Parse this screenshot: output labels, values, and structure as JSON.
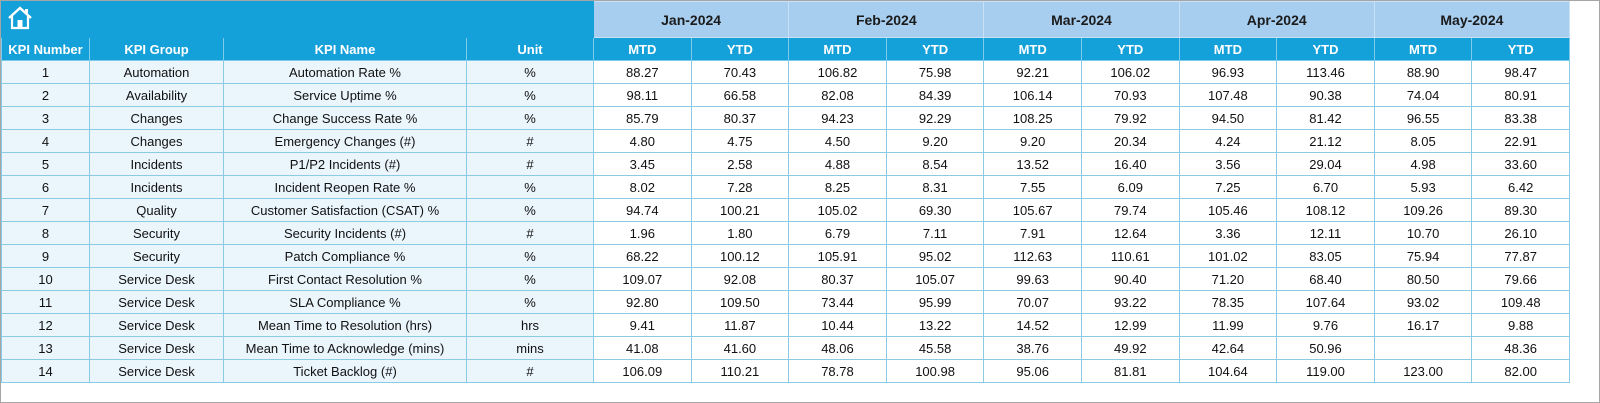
{
  "table": {
    "columns": [
      "KPI Number",
      "KPI Group",
      "KPI Name",
      "Unit"
    ],
    "months": [
      {
        "label": "Jan-2024",
        "sub": [
          "MTD",
          "YTD"
        ]
      },
      {
        "label": "Feb-2024",
        "sub": [
          "MTD",
          "YTD"
        ]
      },
      {
        "label": "Mar-2024",
        "sub": [
          "MTD",
          "YTD"
        ]
      },
      {
        "label": "Apr-2024",
        "sub": [
          "MTD",
          "YTD"
        ]
      },
      {
        "label": "May-2024",
        "sub": [
          "MTD",
          "YTD"
        ]
      }
    ],
    "rows": [
      [
        1,
        "Automation",
        "Automation Rate %",
        "%",
        "88.27",
        "70.43",
        "106.82",
        "75.98",
        "92.21",
        "106.02",
        "96.93",
        "113.46",
        "88.90",
        "98.47"
      ],
      [
        2,
        "Availability",
        "Service Uptime %",
        "%",
        "98.11",
        "66.58",
        "82.08",
        "84.39",
        "106.14",
        "70.93",
        "107.48",
        "90.38",
        "74.04",
        "80.91"
      ],
      [
        3,
        "Changes",
        "Change Success Rate %",
        "%",
        "85.79",
        "80.37",
        "94.23",
        "92.29",
        "108.25",
        "79.92",
        "94.50",
        "81.42",
        "96.55",
        "83.38"
      ],
      [
        4,
        "Changes",
        "Emergency Changes (#)",
        "#",
        "4.80",
        "4.75",
        "4.50",
        "9.20",
        "9.20",
        "20.34",
        "4.24",
        "21.12",
        "8.05",
        "22.91"
      ],
      [
        5,
        "Incidents",
        "P1/P2 Incidents (#)",
        "#",
        "3.45",
        "2.58",
        "4.88",
        "8.54",
        "13.52",
        "16.40",
        "3.56",
        "29.04",
        "4.98",
        "33.60"
      ],
      [
        6,
        "Incidents",
        "Incident Reopen Rate %",
        "%",
        "8.02",
        "7.28",
        "8.25",
        "8.31",
        "7.55",
        "6.09",
        "7.25",
        "6.70",
        "5.93",
        "6.42"
      ],
      [
        7,
        "Quality",
        "Customer Satisfaction (CSAT) %",
        "%",
        "94.74",
        "100.21",
        "105.02",
        "69.30",
        "105.67",
        "79.74",
        "105.46",
        "108.12",
        "109.26",
        "89.30"
      ],
      [
        8,
        "Security",
        "Security Incidents (#)",
        "#",
        "1.96",
        "1.80",
        "6.79",
        "7.11",
        "7.91",
        "12.64",
        "3.36",
        "12.11",
        "10.70",
        "26.10"
      ],
      [
        9,
        "Security",
        "Patch Compliance %",
        "%",
        "68.22",
        "100.12",
        "105.91",
        "95.02",
        "112.63",
        "110.61",
        "101.02",
        "83.05",
        "75.94",
        "77.87"
      ],
      [
        10,
        "Service Desk",
        "First Contact Resolution %",
        "%",
        "109.07",
        "92.08",
        "80.37",
        "105.07",
        "99.63",
        "90.40",
        "71.20",
        "68.40",
        "80.50",
        "79.66"
      ],
      [
        11,
        "Service Desk",
        "SLA Compliance %",
        "%",
        "92.80",
        "109.50",
        "73.44",
        "95.99",
        "70.07",
        "93.22",
        "78.35",
        "107.64",
        "93.02",
        "109.48"
      ],
      [
        12,
        "Service Desk",
        "Mean Time to Resolution (hrs)",
        "hrs",
        "9.41",
        "11.87",
        "10.44",
        "13.22",
        "14.52",
        "12.99",
        "11.99",
        "9.76",
        "16.17",
        "9.88"
      ],
      [
        13,
        "Service Desk",
        "Mean Time to Acknowledge (mins)",
        "mins",
        "41.08",
        "41.60",
        "48.06",
        "45.58",
        "38.76",
        "49.92",
        "42.64",
        "50.96",
        null,
        "48.36"
      ],
      [
        14,
        "Service Desk",
        "Ticket Backlog (#)",
        "#",
        "106.09",
        "110.21",
        "78.78",
        "100.98",
        "95.06",
        "81.81",
        "104.64",
        "119.00",
        "123.00",
        "82.00"
      ]
    ]
  }
}
